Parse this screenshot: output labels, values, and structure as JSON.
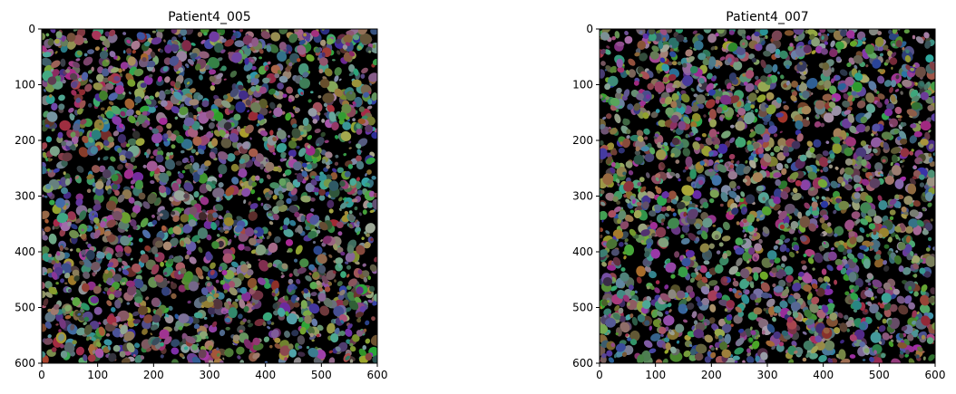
{
  "chart_data": [
    {
      "type": "image",
      "title": "Patient4_005",
      "xlim": [
        0,
        600
      ],
      "ylim": [
        600,
        0
      ],
      "xticks": [
        0,
        100,
        200,
        300,
        400,
        500,
        600
      ],
      "yticks": [
        0,
        100,
        200,
        300,
        400,
        500,
        600
      ]
    },
    {
      "type": "image",
      "title": "Patient4_007",
      "xlim": [
        0,
        600
      ],
      "ylim": [
        600,
        0
      ],
      "xticks": [
        0,
        100,
        200,
        300,
        400,
        500,
        600
      ],
      "yticks": [
        0,
        100,
        200,
        300,
        400,
        500,
        600
      ]
    }
  ]
}
